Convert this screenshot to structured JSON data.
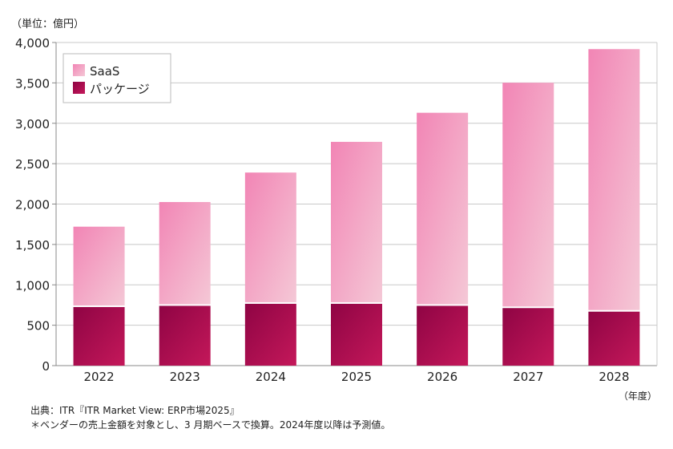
{
  "chart_data": {
    "type": "bar",
    "stacked": true,
    "unit_label": "（単位：億円）",
    "xlabel": "（年度）",
    "categories": [
      "2022",
      "2023",
      "2024",
      "2025",
      "2026",
      "2027",
      "2028"
    ],
    "series": [
      {
        "name": "パッケージ",
        "values": [
          725,
          740,
          765,
          765,
          740,
          712,
          668
        ],
        "color": "#a8084f"
      },
      {
        "name": "SaaS",
        "values": [
          995,
          1285,
          1625,
          2005,
          2390,
          2790,
          3250
        ],
        "color": "#f28bb8"
      }
    ],
    "ylim": [
      0,
      4000
    ],
    "yticks": [
      "0",
      "500",
      "1,000",
      "1,500",
      "2,000",
      "2,500",
      "3,000",
      "3,500",
      "4,000"
    ],
    "grid": true,
    "legend": "top-left"
  },
  "notes": {
    "source": "出典：ITR『ITR Market View: ERP市場2025』",
    "footnote": "＊ベンダーの売上金額を対象とし、3 月期ベースで換算。2024年度以降は予測値。"
  }
}
